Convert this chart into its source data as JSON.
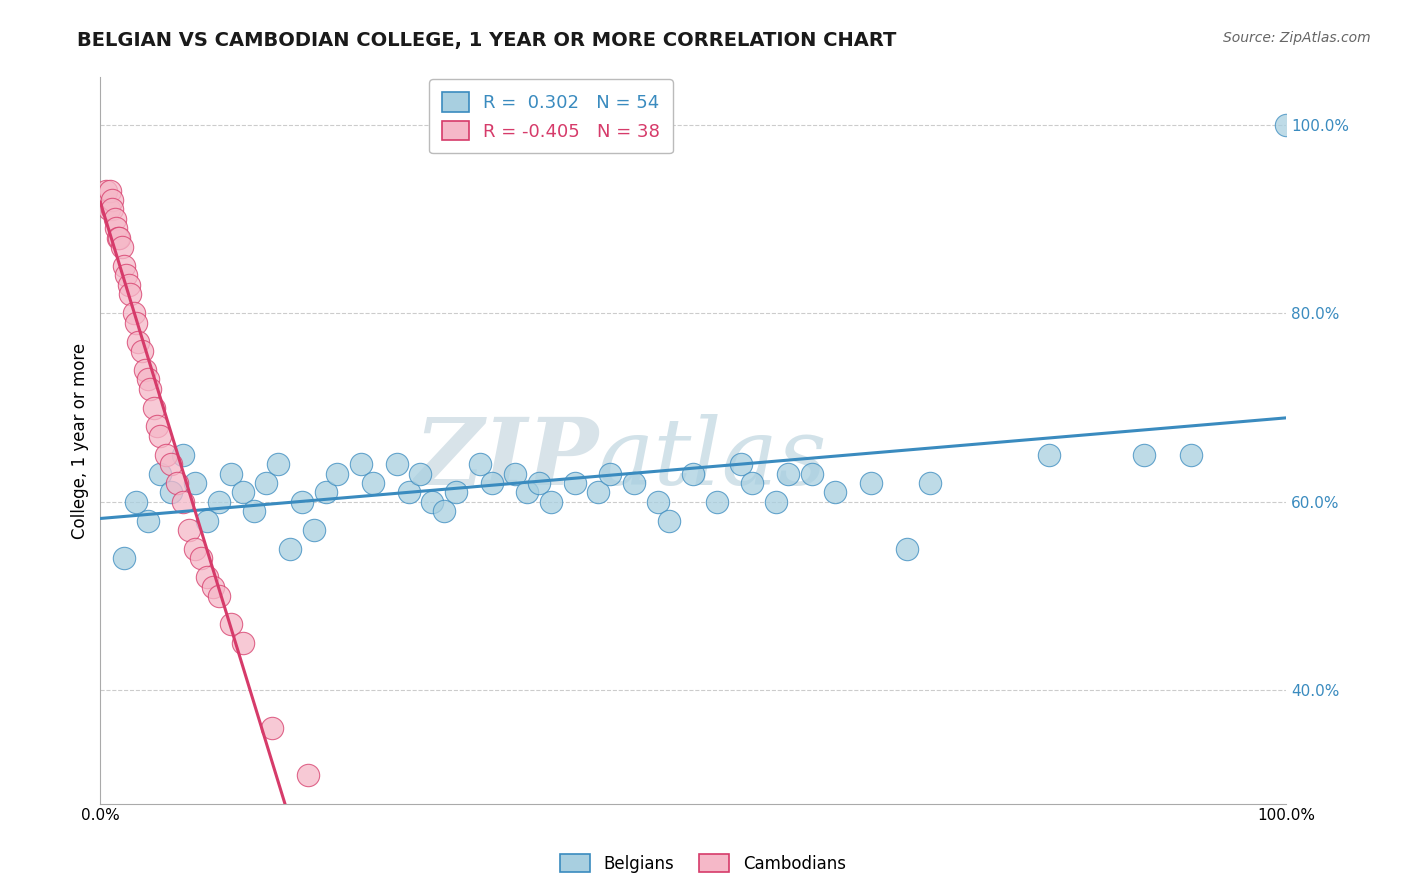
{
  "title": "BELGIAN VS CAMBODIAN COLLEGE, 1 YEAR OR MORE CORRELATION CHART",
  "source_text": "Source: ZipAtlas.com",
  "ylabel": "College, 1 year or more",
  "xlim": [
    0.0,
    1.0
  ],
  "ylim": [
    0.28,
    1.05
  ],
  "watermark_zip": "ZIP",
  "watermark_atlas": "atlas",
  "belgian_R": 0.302,
  "belgian_N": 54,
  "cambodian_R": -0.405,
  "cambodian_N": 38,
  "belgian_color": "#a8cfe0",
  "cambodian_color": "#f5b8c8",
  "belgian_line_color": "#3a8bbf",
  "cambodian_line_color": "#d63b6a",
  "grid_color": "#cccccc",
  "title_color": "#1a1a1a",
  "source_color": "#666666",
  "belgians_label": "Belgians",
  "cambodians_label": "Cambodians",
  "belgian_scatter_x": [
    0.02,
    0.03,
    0.04,
    0.05,
    0.06,
    0.07,
    0.08,
    0.09,
    0.1,
    0.11,
    0.12,
    0.13,
    0.14,
    0.15,
    0.16,
    0.17,
    0.18,
    0.19,
    0.2,
    0.22,
    0.23,
    0.25,
    0.26,
    0.27,
    0.28,
    0.29,
    0.3,
    0.32,
    0.33,
    0.35,
    0.36,
    0.37,
    0.38,
    0.4,
    0.42,
    0.43,
    0.45,
    0.47,
    0.48,
    0.5,
    0.52,
    0.54,
    0.55,
    0.57,
    0.58,
    0.6,
    0.62,
    0.65,
    0.68,
    0.7,
    0.8,
    0.88,
    0.92,
    1.0
  ],
  "belgian_scatter_y": [
    0.54,
    0.6,
    0.58,
    0.63,
    0.61,
    0.65,
    0.62,
    0.58,
    0.6,
    0.63,
    0.61,
    0.59,
    0.62,
    0.64,
    0.55,
    0.6,
    0.57,
    0.61,
    0.63,
    0.64,
    0.62,
    0.64,
    0.61,
    0.63,
    0.6,
    0.59,
    0.61,
    0.64,
    0.62,
    0.63,
    0.61,
    0.62,
    0.6,
    0.62,
    0.61,
    0.63,
    0.62,
    0.6,
    0.58,
    0.63,
    0.6,
    0.64,
    0.62,
    0.6,
    0.63,
    0.63,
    0.61,
    0.62,
    0.55,
    0.62,
    0.65,
    0.65,
    0.65,
    1.0
  ],
  "cambodian_scatter_x": [
    0.005,
    0.007,
    0.008,
    0.01,
    0.01,
    0.012,
    0.013,
    0.015,
    0.016,
    0.018,
    0.02,
    0.022,
    0.024,
    0.025,
    0.028,
    0.03,
    0.032,
    0.035,
    0.038,
    0.04,
    0.042,
    0.045,
    0.048,
    0.05,
    0.055,
    0.06,
    0.065,
    0.07,
    0.075,
    0.08,
    0.085,
    0.09,
    0.095,
    0.1,
    0.11,
    0.12,
    0.145,
    0.175
  ],
  "cambodian_scatter_y": [
    0.93,
    0.91,
    0.93,
    0.92,
    0.91,
    0.9,
    0.89,
    0.88,
    0.88,
    0.87,
    0.85,
    0.84,
    0.83,
    0.82,
    0.8,
    0.79,
    0.77,
    0.76,
    0.74,
    0.73,
    0.72,
    0.7,
    0.68,
    0.67,
    0.65,
    0.64,
    0.62,
    0.6,
    0.57,
    0.55,
    0.54,
    0.52,
    0.51,
    0.5,
    0.47,
    0.45,
    0.36,
    0.31
  ],
  "ytick_values": [
    0.4,
    0.6,
    0.8,
    1.0
  ],
  "ytick_labels": [
    "40.0%",
    "60.0%",
    "80.0%",
    "100.0%"
  ],
  "xtick_values": [
    0.0,
    1.0
  ],
  "xtick_labels": [
    "0.0%",
    "100.0%"
  ]
}
